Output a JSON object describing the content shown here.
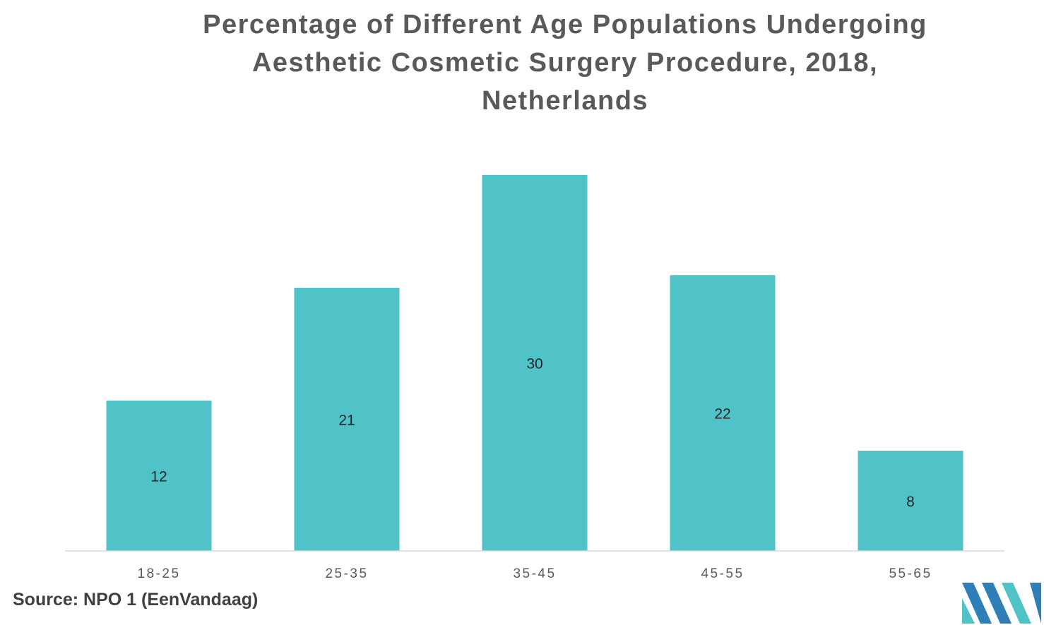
{
  "chart_data": {
    "type": "bar",
    "title_lines": [
      "Percentage of Different Age Populations Undergoing",
      "Aesthetic Cosmetic Surgery Procedure, 2018,",
      "Netherlands"
    ],
    "categories": [
      "18-25",
      "25-35",
      "35-45",
      "45-55",
      "55-65"
    ],
    "values": [
      12,
      21,
      30,
      22,
      8
    ],
    "ylim": [
      0,
      30
    ],
    "grid": false,
    "legend": "none",
    "bar_color": "#4fc3c8",
    "label_position": "center"
  },
  "source": "Source: NPO 1 (EenVandaag)",
  "logo": {
    "icon": "company-logo",
    "colors": [
      "#2e7fb8",
      "#4fc3c8"
    ]
  }
}
